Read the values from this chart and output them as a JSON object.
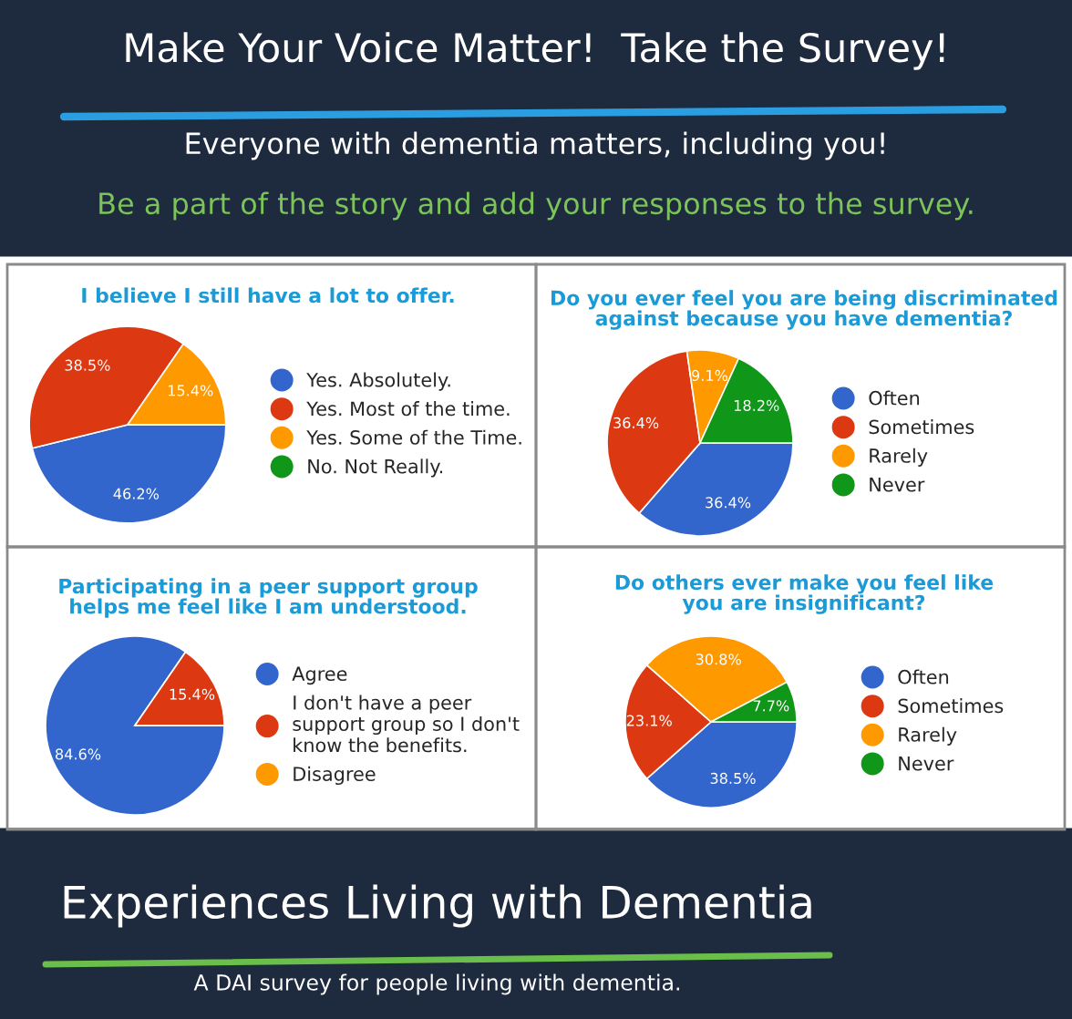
{
  "chart_data": [
    {
      "type": "pie",
      "title": "I believe I still have a lot to offer.",
      "categories": [
        "Yes. Absolutely.",
        "Yes. Most of the time.",
        "Yes. Some of the Time.",
        "No. Not Really."
      ],
      "values": [
        46.2,
        38.5,
        15.4,
        0
      ],
      "colors": [
        "#3366cc",
        "#dc3912",
        "#ff9900",
        "#109618"
      ],
      "value_labels": [
        "46.2%",
        "38.5%",
        "15.4%",
        null
      ],
      "legend": "right",
      "annotations": [
        "Make Your Voice Matter!  Take the Survey!",
        "Everyone with dementia matters, including you!",
        "Be a part of the story and add your responses to the survey."
      ]
    },
    {
      "type": "pie",
      "title": "Do you ever feel you are being discriminated\nagainst because you have dementia?",
      "categories": [
        "Often",
        "Sometimes",
        "Rarely",
        "Never"
      ],
      "values": [
        36.4,
        36.4,
        9.1,
        18.2
      ],
      "colors": [
        "#3366cc",
        "#dc3912",
        "#ff9900",
        "#109618"
      ],
      "value_labels": [
        "36.4%",
        "36.4%",
        "9.1%",
        "18.2%"
      ],
      "legend": "right"
    },
    {
      "type": "pie",
      "title": "Participating in a peer support group\nhelps me feel like I am understood.",
      "categories": [
        "Agree",
        "I don't have a peer\nsupport group so I don't\nknow the benefits.",
        "Disagree"
      ],
      "values": [
        84.6,
        15.4,
        0
      ],
      "colors": [
        "#3366cc",
        "#dc3912",
        "#ff9900"
      ],
      "value_labels": [
        "84.6%",
        "15.4%",
        null
      ],
      "legend": "right"
    },
    {
      "type": "pie",
      "title": "Do others ever make you feel like\nyou are insignificant?",
      "categories": [
        "Often",
        "Sometimes",
        "Rarely",
        "Never"
      ],
      "values": [
        38.5,
        23.1,
        30.8,
        7.7
      ],
      "colors": [
        "#3366cc",
        "#dc3912",
        "#ff9900",
        "#109618"
      ],
      "value_labels": [
        "38.5%",
        "23.1%",
        "30.8%",
        "7.7%"
      ],
      "legend": "right",
      "annotations": [
        "Experiences Living with Dementia",
        "A DAI survey for people living with dementia."
      ]
    }
  ]
}
